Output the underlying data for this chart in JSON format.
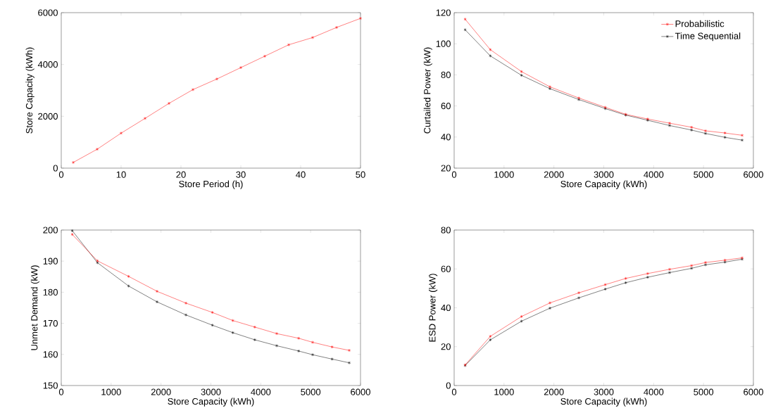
{
  "chart_data": [
    {
      "type": "line",
      "xlabel": "Store Period (h)",
      "ylabel": "Store Capacity (kWh)",
      "x": [
        2,
        6,
        10,
        14,
        18,
        22,
        26,
        30,
        34,
        38,
        42,
        46,
        50
      ],
      "series": [
        {
          "color": "#ff0000",
          "values": [
            220,
            730,
            1350,
            1920,
            2500,
            3030,
            3440,
            3880,
            4320,
            4760,
            5040,
            5430,
            5780
          ]
        }
      ],
      "xlim": [
        0,
        50
      ],
      "xticks": [
        0,
        10,
        20,
        30,
        40,
        50
      ],
      "ylim": [
        0,
        6000
      ],
      "yticks": [
        0,
        2000,
        4000,
        6000
      ],
      "marker": "cross",
      "line_style": "solid"
    },
    {
      "type": "line",
      "xlabel": "Store Capacity (kWh)",
      "ylabel": "Curtailed Power (kW)",
      "x": [
        220,
        725,
        1350,
        1920,
        2500,
        3030,
        3440,
        3880,
        4320,
        4760,
        5040,
        5430,
        5775
      ],
      "series": [
        {
          "name": "Probabilistic",
          "color": "#ff0000",
          "values": [
            115.8,
            96.2,
            82.1,
            72.3,
            65.1,
            59.1,
            54.6,
            51.6,
            48.9,
            46.3,
            44,
            42.6,
            41.1
          ]
        },
        {
          "name": "Time Sequential",
          "color": "#000000",
          "values": [
            109,
            92.2,
            79.7,
            71.1,
            64.1,
            58.3,
            54.1,
            50.8,
            47.4,
            44.5,
            42.3,
            39.8,
            38
          ]
        }
      ],
      "xlim": [
        0,
        6000
      ],
      "xticks": [
        0,
        1000,
        2000,
        3000,
        4000,
        5000,
        6000
      ],
      "ylim": [
        20,
        120
      ],
      "yticks": [
        20,
        40,
        60,
        80,
        100,
        120
      ],
      "marker": "cross",
      "line_style": "solid",
      "legend": "top right"
    },
    {
      "type": "line",
      "xlabel": "Store Capacity (kWh)",
      "ylabel": "Unmet Demand (kW)",
      "x": [
        220,
        725,
        1350,
        1920,
        2500,
        3030,
        3440,
        3880,
        4320,
        4760,
        5040,
        5430,
        5775
      ],
      "series": [
        {
          "color": "#ff0000",
          "values": [
            198.6,
            190.1,
            185.1,
            180.3,
            176.5,
            173.5,
            170.9,
            168.8,
            166.7,
            165.2,
            163.9,
            162.4,
            161.3
          ]
        },
        {
          "color": "#000000",
          "values": [
            199.8,
            189.5,
            182,
            176.9,
            172.7,
            169.4,
            167,
            164.7,
            162.8,
            161.1,
            159.9,
            158.5,
            157.3
          ]
        }
      ],
      "xlim": [
        0,
        6000
      ],
      "xticks": [
        0,
        1000,
        2000,
        3000,
        4000,
        5000,
        6000
      ],
      "ylim": [
        150,
        200
      ],
      "yticks": [
        150,
        160,
        170,
        180,
        190,
        200
      ],
      "marker": "cross",
      "line_style": "solid"
    },
    {
      "type": "line",
      "xlabel": "Store Capacity (kWh)",
      "ylabel": "ESD Power (kW)",
      "x": [
        220,
        725,
        1350,
        1920,
        2500,
        3030,
        3440,
        3880,
        4320,
        4760,
        5040,
        5430,
        5775
      ],
      "series": [
        {
          "color": "#ff0000",
          "values": [
            10.6,
            25.3,
            35.5,
            42.5,
            47.7,
            51.9,
            55.1,
            57.6,
            59.8,
            61.7,
            63.3,
            64.5,
            65.7
          ]
        },
        {
          "color": "#000000",
          "values": [
            10.3,
            23.5,
            33.1,
            39.8,
            45.1,
            49.6,
            52.9,
            55.7,
            58.1,
            60.3,
            62.1,
            63.5,
            65
          ]
        }
      ],
      "xlim": [
        0,
        6000
      ],
      "xticks": [
        0,
        1000,
        2000,
        3000,
        4000,
        5000,
        6000
      ],
      "ylim": [
        0,
        80
      ],
      "yticks": [
        0,
        20,
        40,
        60,
        80
      ],
      "marker": "cross",
      "line_style": "solid"
    }
  ]
}
